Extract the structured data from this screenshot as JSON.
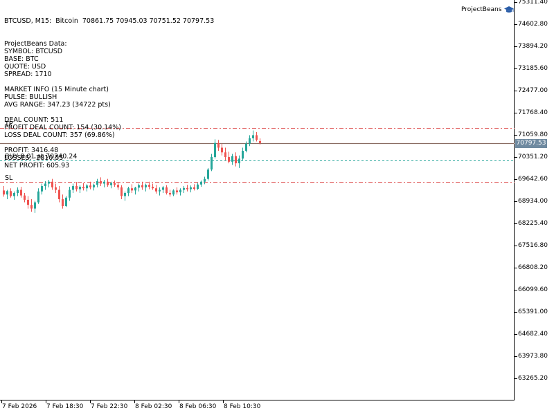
{
  "header": {
    "symbol_line": "BTCUSD, M15:  Bitcoin  70861.75 70945.03 70751.52 70797.53"
  },
  "brand": {
    "name": "ProjectBeans",
    "icon": "graduation-cap-icon"
  },
  "info_panel": {
    "lines": [
      "ProjectBeans Data:",
      "SYMBOL: BTCUSD",
      "BASE: BTC",
      "QUOTE: USD",
      "SPREAD: 1710",
      "",
      "MARKET INFO (15 Minute chart)",
      "PULSE: BULLISH",
      "AVG RANGE: 347.23 (34722 pts)",
      "",
      "DEAL COUNT: 511",
      "PROFIT DEAL COUNT: 154 (30.14%)",
      "LOSS DEAL COUNT: 357 (69.86%)",
      "",
      "PROFIT: 3416.48",
      "LOSSES: -2810.55",
      "NET PROFIT: 605.93"
    ]
  },
  "levels": {
    "tp_label": "TP",
    "sl_label": "SL",
    "buy_label": "BUY 0.01 at 70240.24",
    "current_price_badge": "70797.53",
    "tp_price": 71290,
    "sl_price": 69560,
    "buy_price": 70240.24,
    "current_price": 70797.53
  },
  "colors": {
    "bull": "#26a69a",
    "bear": "#ef5350",
    "tp_sl_line": "#e05a5a",
    "buy_line": "#26a69a",
    "price_line": "#8a6d63",
    "badge": "#6f8aa0"
  },
  "price_axis": {
    "ticks": [
      "75311.40",
      "74602.80",
      "73894.20",
      "73185.60",
      "72477.00",
      "71768.40",
      "71059.80",
      "70351.20",
      "69642.60",
      "68934.00",
      "68225.40",
      "67516.80",
      "66808.20",
      "66099.60",
      "65391.00",
      "64682.40",
      "63973.80",
      "63265.20"
    ]
  },
  "time_axis": {
    "ticks": [
      "7 Feb 2026",
      "7 Feb 18:30",
      "7 Feb 22:30",
      "8 Feb 02:30",
      "8 Feb 06:30",
      "8 Feb 10:30"
    ]
  },
  "chart_data": {
    "type": "candlestick",
    "symbol": "BTCUSD",
    "timeframe": "M15",
    "ylim": [
      62900,
      75311.4
    ],
    "candles": [
      {
        "o": 69280,
        "h": 69420,
        "l": 69080,
        "c": 69150
      },
      {
        "o": 69150,
        "h": 69300,
        "l": 69000,
        "c": 69260
      },
      {
        "o": 69260,
        "h": 69350,
        "l": 69050,
        "c": 69100
      },
      {
        "o": 69100,
        "h": 69250,
        "l": 68980,
        "c": 69200
      },
      {
        "o": 69200,
        "h": 69380,
        "l": 69100,
        "c": 69300
      },
      {
        "o": 69300,
        "h": 69400,
        "l": 69050,
        "c": 69120
      },
      {
        "o": 69120,
        "h": 69200,
        "l": 68900,
        "c": 68980
      },
      {
        "o": 68980,
        "h": 69100,
        "l": 68700,
        "c": 68820
      },
      {
        "o": 68820,
        "h": 69000,
        "l": 68600,
        "c": 68700
      },
      {
        "o": 68700,
        "h": 68950,
        "l": 68560,
        "c": 68900
      },
      {
        "o": 68900,
        "h": 69350,
        "l": 68850,
        "c": 69250
      },
      {
        "o": 69250,
        "h": 69500,
        "l": 69150,
        "c": 69420
      },
      {
        "o": 69420,
        "h": 69580,
        "l": 69300,
        "c": 69500
      },
      {
        "o": 69500,
        "h": 69620,
        "l": 69380,
        "c": 69560
      },
      {
        "o": 69560,
        "h": 69650,
        "l": 69300,
        "c": 69380
      },
      {
        "o": 69380,
        "h": 69500,
        "l": 69200,
        "c": 69300
      },
      {
        "o": 69300,
        "h": 69420,
        "l": 68900,
        "c": 69000
      },
      {
        "o": 69000,
        "h": 69150,
        "l": 68700,
        "c": 68780
      },
      {
        "o": 68780,
        "h": 69100,
        "l": 68750,
        "c": 69050
      },
      {
        "o": 69050,
        "h": 69400,
        "l": 68950,
        "c": 69300
      },
      {
        "o": 69300,
        "h": 69500,
        "l": 69200,
        "c": 69420
      },
      {
        "o": 69420,
        "h": 69550,
        "l": 69250,
        "c": 69320
      },
      {
        "o": 69320,
        "h": 69450,
        "l": 69200,
        "c": 69400
      },
      {
        "o": 69400,
        "h": 69520,
        "l": 69280,
        "c": 69350
      },
      {
        "o": 69350,
        "h": 69480,
        "l": 69250,
        "c": 69440
      },
      {
        "o": 69440,
        "h": 69560,
        "l": 69320,
        "c": 69380
      },
      {
        "o": 69380,
        "h": 69500,
        "l": 69280,
        "c": 69460
      },
      {
        "o": 69460,
        "h": 69650,
        "l": 69380,
        "c": 69580
      },
      {
        "o": 69580,
        "h": 69700,
        "l": 69420,
        "c": 69500
      },
      {
        "o": 69500,
        "h": 69620,
        "l": 69380,
        "c": 69560
      },
      {
        "o": 69560,
        "h": 69650,
        "l": 69400,
        "c": 69450
      },
      {
        "o": 69450,
        "h": 69560,
        "l": 69350,
        "c": 69520
      },
      {
        "o": 69520,
        "h": 69600,
        "l": 69400,
        "c": 69460
      },
      {
        "o": 69460,
        "h": 69540,
        "l": 69300,
        "c": 69380
      },
      {
        "o": 69380,
        "h": 69450,
        "l": 69000,
        "c": 69100
      },
      {
        "o": 69100,
        "h": 69250,
        "l": 68950,
        "c": 69200
      },
      {
        "o": 69200,
        "h": 69400,
        "l": 69100,
        "c": 69350
      },
      {
        "o": 69350,
        "h": 69480,
        "l": 69200,
        "c": 69280
      },
      {
        "o": 69280,
        "h": 69400,
        "l": 69150,
        "c": 69370
      },
      {
        "o": 69370,
        "h": 69500,
        "l": 69250,
        "c": 69450
      },
      {
        "o": 69450,
        "h": 69560,
        "l": 69300,
        "c": 69380
      },
      {
        "o": 69380,
        "h": 69500,
        "l": 69250,
        "c": 69460
      },
      {
        "o": 69460,
        "h": 69560,
        "l": 69320,
        "c": 69400
      },
      {
        "o": 69400,
        "h": 69500,
        "l": 69300,
        "c": 69350
      },
      {
        "o": 69350,
        "h": 69460,
        "l": 69180,
        "c": 69250
      },
      {
        "o": 69250,
        "h": 69380,
        "l": 69120,
        "c": 69300
      },
      {
        "o": 69300,
        "h": 69420,
        "l": 69200,
        "c": 69380
      },
      {
        "o": 69380,
        "h": 69450,
        "l": 69150,
        "c": 69200
      },
      {
        "o": 69200,
        "h": 69300,
        "l": 69080,
        "c": 69150
      },
      {
        "o": 69150,
        "h": 69320,
        "l": 69100,
        "c": 69280
      },
      {
        "o": 69280,
        "h": 69380,
        "l": 69150,
        "c": 69220
      },
      {
        "o": 69220,
        "h": 69350,
        "l": 69120,
        "c": 69300
      },
      {
        "o": 69300,
        "h": 69420,
        "l": 69200,
        "c": 69360
      },
      {
        "o": 69360,
        "h": 69460,
        "l": 69250,
        "c": 69320
      },
      {
        "o": 69320,
        "h": 69440,
        "l": 69220,
        "c": 69380
      },
      {
        "o": 69380,
        "h": 69480,
        "l": 69280,
        "c": 69330
      },
      {
        "o": 69330,
        "h": 69520,
        "l": 69300,
        "c": 69470
      },
      {
        "o": 69470,
        "h": 69600,
        "l": 69400,
        "c": 69560
      },
      {
        "o": 69560,
        "h": 69720,
        "l": 69480,
        "c": 69650
      },
      {
        "o": 69650,
        "h": 70000,
        "l": 69600,
        "c": 69950
      },
      {
        "o": 69950,
        "h": 70450,
        "l": 69900,
        "c": 70350
      },
      {
        "o": 70350,
        "h": 70920,
        "l": 70300,
        "c": 70800
      },
      {
        "o": 70800,
        "h": 70900,
        "l": 70550,
        "c": 70650
      },
      {
        "o": 70650,
        "h": 70780,
        "l": 70400,
        "c": 70500
      },
      {
        "o": 70500,
        "h": 70650,
        "l": 70250,
        "c": 70350
      },
      {
        "o": 70350,
        "h": 70520,
        "l": 70150,
        "c": 70200
      },
      {
        "o": 70200,
        "h": 70450,
        "l": 70100,
        "c": 70380
      },
      {
        "o": 70380,
        "h": 70500,
        "l": 70050,
        "c": 70150
      },
      {
        "o": 70150,
        "h": 70400,
        "l": 70000,
        "c": 70300
      },
      {
        "o": 70300,
        "h": 70650,
        "l": 70250,
        "c": 70550
      },
      {
        "o": 70550,
        "h": 70850,
        "l": 70500,
        "c": 70780
      },
      {
        "o": 70780,
        "h": 71050,
        "l": 70700,
        "c": 70950
      },
      {
        "o": 70950,
        "h": 71200,
        "l": 70850,
        "c": 71050
      },
      {
        "o": 71050,
        "h": 71150,
        "l": 70850,
        "c": 70900
      },
      {
        "o": 70861.75,
        "h": 70945.03,
        "l": 70751.52,
        "c": 70797.53
      }
    ]
  }
}
